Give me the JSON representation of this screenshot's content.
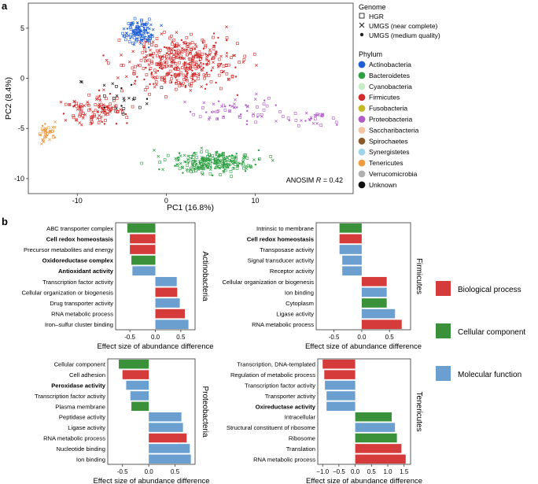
{
  "panel_a": {
    "label": "a",
    "xlabel": "PC1 (16.8%)",
    "ylabel": "PC2 (8.4%)",
    "annotation_prefix": "ANOSIM ",
    "annotation_var": "R",
    "annotation_value": " = 0.42",
    "genome_title": "Genome",
    "genome_legend": [
      {
        "symbol": "square",
        "label": "HGR"
      },
      {
        "symbol": "cross",
        "label": "UMGS (near complete)"
      },
      {
        "symbol": "dot",
        "label": "UMGS (medium quality)"
      }
    ],
    "phylum_title": "Phylum",
    "phylum_legend": [
      {
        "name": "Actinobacteria",
        "color": "#1f5fd6"
      },
      {
        "name": "Bacteroidetes",
        "color": "#2ea043"
      },
      {
        "name": "Cyanobacteria",
        "color": "#c8ecc8"
      },
      {
        "name": "Firmicutes",
        "color": "#d22b2b"
      },
      {
        "name": "Fusobacteria",
        "color": "#c4b927"
      },
      {
        "name": "Proteobacteria",
        "color": "#b25cc8"
      },
      {
        "name": "Saccharibacteria",
        "color": "#f4c3a0"
      },
      {
        "name": "Spirochaetes",
        "color": "#8b5a2b"
      },
      {
        "name": "Synergistetes",
        "color": "#9fd3ea"
      },
      {
        "name": "Tenericutes",
        "color": "#f09a3e"
      },
      {
        "name": "Verrucomicrobia",
        "color": "#b0b0b0"
      },
      {
        "name": "Unknown",
        "color": "#111111"
      }
    ]
  },
  "chart_data": [
    {
      "type": "scatter",
      "title": "",
      "xlabel": "PC1 (16.8%)",
      "ylabel": "PC2 (8.4%)",
      "xlim": [
        -15.5,
        21
      ],
      "ylim": [
        -11.5,
        7.5
      ],
      "xticks": [
        -10,
        0,
        10
      ],
      "yticks": [
        5,
        0,
        -5,
        -10
      ],
      "clusters": [
        {
          "phylum": "Firmicutes",
          "color": "#d22b2b",
          "center": [
            1.5,
            1.5
          ],
          "spread": [
            6,
            2.8
          ],
          "n": 420
        },
        {
          "phylum": "Firmicutes",
          "color": "#d22b2b",
          "center": [
            -8,
            -3
          ],
          "spread": [
            3.5,
            1.6
          ],
          "n": 120
        },
        {
          "phylum": "Actinobacteria",
          "color": "#1f5fd6",
          "center": [
            -3,
            4.6
          ],
          "spread": [
            1.6,
            1.2
          ],
          "n": 120
        },
        {
          "phylum": "Bacteroidetes",
          "color": "#2ea043",
          "center": [
            5,
            -8.3
          ],
          "spread": [
            5,
            1.0
          ],
          "n": 260
        },
        {
          "phylum": "Proteobacteria",
          "color": "#b25cc8",
          "center": [
            8,
            -3.2
          ],
          "spread": [
            4.5,
            1.4
          ],
          "n": 60
        },
        {
          "phylum": "Proteobacteria",
          "color": "#b25cc8",
          "center": [
            16.5,
            -4
          ],
          "spread": [
            2.5,
            0.8
          ],
          "n": 28
        },
        {
          "phylum": "Tenericutes",
          "color": "#f09a3e",
          "center": [
            -13.5,
            -5.5
          ],
          "spread": [
            0.8,
            0.9
          ],
          "n": 40
        },
        {
          "phylum": "Unknown",
          "color": "#111111",
          "center": [
            -5,
            -2
          ],
          "spread": [
            4,
            1.8
          ],
          "n": 24
        }
      ]
    },
    {
      "type": "bar",
      "orientation": "horizontal",
      "facet": "Actinobacteria",
      "xlabel": "Effect size of abundance difference",
      "xlim": [
        -0.78,
        0.78
      ],
      "xticks": [
        -0.5,
        0.0,
        0.5
      ],
      "xtick_labels": [
        "-0.5",
        "0.0",
        "0.5"
      ],
      "categories": [
        "ABC transporter complex",
        "Cell redox homeostasis",
        "Precursor metabolites and energy",
        "Oxidoreductase complex",
        "Antioxidant activity",
        "Transcription factor activity",
        "Cellular organization or biogenesis",
        "Drug transporter activity",
        "RNA metabolic process",
        "Iron–sulfur cluster binding"
      ],
      "bold": [
        false,
        true,
        false,
        true,
        true,
        false,
        false,
        false,
        false,
        false
      ],
      "values": [
        -0.55,
        -0.5,
        -0.5,
        -0.47,
        -0.45,
        0.42,
        0.43,
        0.48,
        0.58,
        0.65
      ],
      "groups": [
        "cellular",
        "biological",
        "biological",
        "cellular",
        "molecular",
        "molecular",
        "biological",
        "molecular",
        "biological",
        "molecular"
      ]
    },
    {
      "type": "bar",
      "orientation": "horizontal",
      "facet": "Firmicutes",
      "xlabel": "Effect size of abundance difference",
      "xlim": [
        -0.82,
        0.88
      ],
      "xticks": [
        -0.5,
        0.0,
        0.5
      ],
      "xtick_labels": [
        "-0.5",
        "0.0",
        "0.5"
      ],
      "categories": [
        "Intrinsic to membrane",
        "Cell redox homeostasis",
        "Transposase activity",
        "Signal transducer activity",
        "Receptor activity",
        "Cellular organization or biogenesis",
        "Ion binding",
        "Cytoplasm",
        "Ligase activity",
        "RNA metabolic process"
      ],
      "bold": [
        false,
        true,
        false,
        false,
        false,
        false,
        false,
        false,
        false,
        false
      ],
      "values": [
        -0.4,
        -0.4,
        -0.4,
        -0.35,
        -0.35,
        0.45,
        0.45,
        0.45,
        0.6,
        0.72
      ],
      "groups": [
        "cellular",
        "biological",
        "molecular",
        "molecular",
        "molecular",
        "biological",
        "molecular",
        "cellular",
        "molecular",
        "biological"
      ]
    },
    {
      "type": "bar",
      "orientation": "horizontal",
      "facet": "Proteobacteria",
      "xlabel": "Effect size of abundance difference",
      "xlim": [
        -0.78,
        0.88
      ],
      "xticks": [
        -0.5,
        0.0,
        0.5
      ],
      "xtick_labels": [
        "-0.5",
        "0.0",
        "0.5"
      ],
      "categories": [
        "Cellular component",
        "Cell adhesion",
        "Peroxidase activity",
        "Transcription factor activity",
        "Plasma membrane",
        "Peptidase activity",
        "Ligase activity",
        "RNA metabolic process",
        "Nucleotide binding",
        "Ion binding"
      ],
      "bold": [
        false,
        false,
        true,
        false,
        false,
        false,
        false,
        false,
        false,
        false
      ],
      "values": [
        -0.57,
        -0.5,
        -0.43,
        -0.35,
        -0.33,
        0.62,
        0.65,
        0.72,
        0.78,
        0.8
      ],
      "groups": [
        "cellular",
        "biological",
        "molecular",
        "molecular",
        "cellular",
        "molecular",
        "molecular",
        "biological",
        "molecular",
        "molecular"
      ]
    },
    {
      "type": "bar",
      "orientation": "horizontal",
      "facet": "Tenericutes",
      "xlabel": "Effect size of abundance difference",
      "xlim": [
        -1.15,
        1.7
      ],
      "xticks": [
        -1.0,
        -0.5,
        0.0,
        0.5,
        1.0,
        1.5
      ],
      "xtick_labels": [
        "−1.0",
        "−0.5",
        "0.0",
        "0.5",
        "1.0",
        "1.5"
      ],
      "categories": [
        "Transcription, DNA-templated",
        "Regulation of metabolic process",
        "Transcription factor activity",
        "Transporter activity",
        "Oxireductase activity",
        "Intracellular",
        "Structural constituent of ribosome",
        "Ribosome",
        "Translation",
        "RNA metabolic process"
      ],
      "bold": [
        false,
        false,
        false,
        false,
        true,
        false,
        false,
        false,
        false,
        false
      ],
      "values": [
        -1.0,
        -0.95,
        -0.93,
        -0.88,
        -0.88,
        1.12,
        1.22,
        1.28,
        1.42,
        1.55
      ],
      "groups": [
        "biological",
        "biological",
        "molecular",
        "molecular",
        "molecular",
        "cellular",
        "molecular",
        "cellular",
        "biological",
        "biological"
      ]
    }
  ],
  "panel_b": {
    "label": "b",
    "group_legend": [
      {
        "key": "biological",
        "label": "Biological process",
        "color": "#d63b3b"
      },
      {
        "key": "cellular",
        "label": "Cellular component",
        "color": "#3a913a"
      },
      {
        "key": "molecular",
        "label": "Molecular function",
        "color": "#6a9fd0"
      }
    ]
  }
}
